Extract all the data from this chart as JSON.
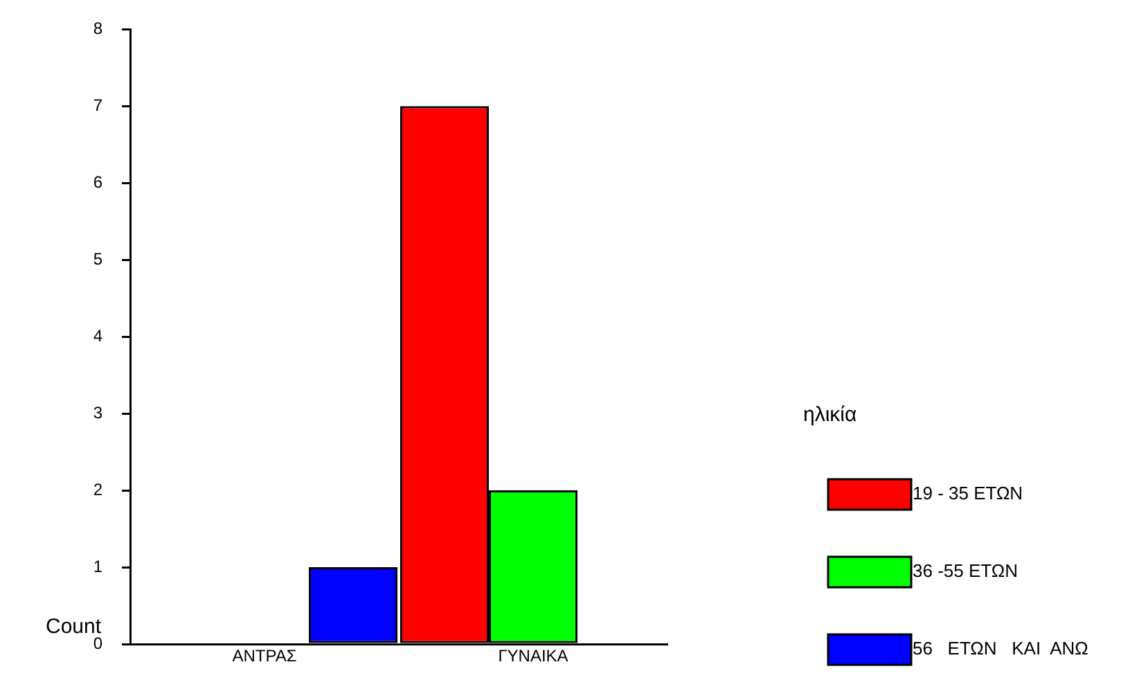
{
  "chart_data": {
    "type": "bar",
    "ylabel": "Count",
    "legend_title": "ηλικία",
    "categories": [
      "ΑΝΤΡΑΣ",
      "ΓΥΝΑΙΚΑ"
    ],
    "series": [
      {
        "name": "19 - 35 ΕΤΩΝ",
        "color": "#ff0000",
        "values": [
          0,
          7
        ]
      },
      {
        "name": "36 -55 ΕΤΩΝ",
        "color": "#00ff00",
        "values": [
          0,
          2
        ]
      },
      {
        "name": "56   ΕΤΩΝ   ΚΑΙ  ΑΝΩ",
        "color": "#0000ff",
        "values": [
          1,
          0
        ]
      }
    ],
    "ylim": [
      0,
      8
    ],
    "yticks": [
      0,
      1,
      2,
      3,
      4,
      5,
      6,
      7,
      8
    ],
    "grid": false,
    "legend": "right"
  }
}
